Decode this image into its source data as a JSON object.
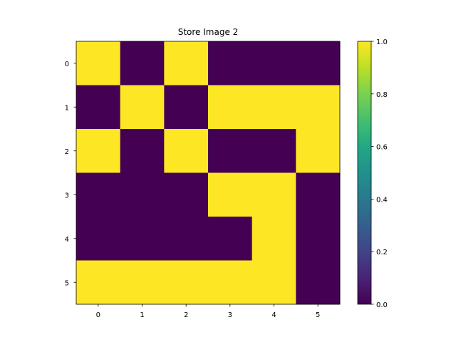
{
  "chart_data": {
    "type": "heatmap",
    "title": "Store Image 2",
    "xlabel": "",
    "ylabel": "",
    "x_ticks": [
      "0",
      "1",
      "2",
      "3",
      "4",
      "5"
    ],
    "y_ticks": [
      "0",
      "1",
      "2",
      "3",
      "4",
      "5"
    ],
    "matrix": [
      [
        1,
        0,
        1,
        0,
        0,
        0
      ],
      [
        0,
        1,
        0,
        1,
        1,
        1
      ],
      [
        1,
        0,
        1,
        0,
        0,
        1
      ],
      [
        0,
        0,
        0,
        1,
        1,
        0
      ],
      [
        0,
        0,
        0,
        0,
        1,
        0
      ],
      [
        1,
        1,
        1,
        1,
        1,
        0
      ]
    ],
    "colorbar": {
      "min": 0.0,
      "max": 1.0,
      "ticks": [
        "0.0",
        "0.2",
        "0.4",
        "0.6",
        "0.8",
        "1.0"
      ],
      "colormap": "viridis"
    },
    "colors": {
      "low": "#440154",
      "high": "#fde725"
    },
    "grid": false
  }
}
